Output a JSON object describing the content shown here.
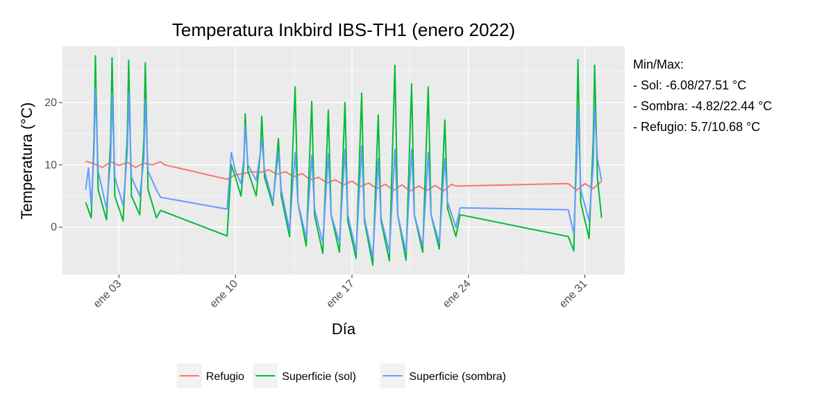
{
  "chart_data": {
    "type": "line",
    "title": "Temperatura Inkbird IBS-TH1 (enero 2022)",
    "xlabel": "Día",
    "ylabel": "Temperatura (°C)",
    "x_range": [
      "2022-01-01",
      "2022-02-01"
    ],
    "ylim": [
      -7.6,
      29.0
    ],
    "y_ticks": [
      0,
      10,
      20
    ],
    "x_ticks": [
      {
        "date": "2022-01-03",
        "label": "ene 03"
      },
      {
        "date": "2022-01-10",
        "label": "ene 10"
      },
      {
        "date": "2022-01-17",
        "label": "ene 17"
      },
      {
        "date": "2022-01-24",
        "label": "ene 24"
      },
      {
        "date": "2022-01-31",
        "label": "ene 31"
      }
    ],
    "grid": true,
    "legend_position": "bottom",
    "annotation": {
      "heading": "Min/Max:",
      "lines": [
        "- Sol: -6.08/27.51 °C",
        "- Sombra: -4.82/22.44 °C",
        "- Refugio: 5.7/10.68 °C"
      ]
    },
    "series": [
      {
        "name": "Refugio",
        "color": "#F8766D",
        "points": [
          [
            "2022-01-01 00:00",
            10.6
          ],
          [
            "2022-01-01 12:00",
            10.2
          ],
          [
            "2022-01-02 00:00",
            9.6
          ],
          [
            "2022-01-02 12:00",
            10.5
          ],
          [
            "2022-01-03 00:00",
            9.9
          ],
          [
            "2022-01-03 12:00",
            10.4
          ],
          [
            "2022-01-04 00:00",
            9.6
          ],
          [
            "2022-01-04 12:00",
            10.3
          ],
          [
            "2022-01-05 00:00",
            10.0
          ],
          [
            "2022-01-05 12:00",
            10.5
          ],
          [
            "2022-01-05 18:00",
            10.0
          ],
          [
            "2022-01-09 12:00",
            7.7
          ],
          [
            "2022-01-10 00:00",
            8.4
          ],
          [
            "2022-01-10 12:00",
            8.6
          ],
          [
            "2022-01-11 00:00",
            8.9
          ],
          [
            "2022-01-11 12:00",
            8.8
          ],
          [
            "2022-01-12 00:00",
            9.2
          ],
          [
            "2022-01-12 12:00",
            8.5
          ],
          [
            "2022-01-13 00:00",
            8.9
          ],
          [
            "2022-01-13 12:00",
            8.1
          ],
          [
            "2022-01-14 00:00",
            8.6
          ],
          [
            "2022-01-14 12:00",
            7.6
          ],
          [
            "2022-01-15 00:00",
            8.0
          ],
          [
            "2022-01-15 12:00",
            7.1
          ],
          [
            "2022-01-16 00:00",
            7.6
          ],
          [
            "2022-01-16 12:00",
            6.8
          ],
          [
            "2022-01-17 00:00",
            7.4
          ],
          [
            "2022-01-17 12:00",
            6.5
          ],
          [
            "2022-01-18 00:00",
            7.1
          ],
          [
            "2022-01-18 12:00",
            6.2
          ],
          [
            "2022-01-19 00:00",
            6.9
          ],
          [
            "2022-01-19 12:00",
            5.9
          ],
          [
            "2022-01-20 00:00",
            6.8
          ],
          [
            "2022-01-20 12:00",
            5.8
          ],
          [
            "2022-01-21 00:00",
            6.6
          ],
          [
            "2022-01-21 12:00",
            5.9
          ],
          [
            "2022-01-22 00:00",
            6.7
          ],
          [
            "2022-01-22 12:00",
            5.8
          ],
          [
            "2022-01-23 00:00",
            6.9
          ],
          [
            "2022-01-23 06:00",
            6.6
          ],
          [
            "2022-01-30 00:00",
            7.0
          ],
          [
            "2022-01-30 12:00",
            5.9
          ],
          [
            "2022-01-31 00:00",
            7.0
          ],
          [
            "2022-01-31 12:00",
            6.2
          ],
          [
            "2022-02-01 00:00",
            7.4
          ]
        ]
      },
      {
        "name": "Superficie (sol)",
        "color": "#00BA38",
        "points": [
          [
            "2022-01-01 00:00",
            4.0
          ],
          [
            "2022-01-01 08:00",
            1.5
          ],
          [
            "2022-01-01 12:00",
            14.0
          ],
          [
            "2022-01-01 14:00",
            27.5
          ],
          [
            "2022-01-01 18:00",
            6.0
          ],
          [
            "2022-01-02 06:00",
            1.2
          ],
          [
            "2022-01-02 12:00",
            14.0
          ],
          [
            "2022-01-02 14:00",
            27.2
          ],
          [
            "2022-01-02 18:00",
            5.0
          ],
          [
            "2022-01-03 06:00",
            1.0
          ],
          [
            "2022-01-03 12:00",
            15.0
          ],
          [
            "2022-01-03 14:00",
            26.8
          ],
          [
            "2022-01-03 18:00",
            5.0
          ],
          [
            "2022-01-04 06:00",
            2.0
          ],
          [
            "2022-01-04 12:00",
            14.0
          ],
          [
            "2022-01-04 14:00",
            26.4
          ],
          [
            "2022-01-04 18:00",
            6.0
          ],
          [
            "2022-01-05 06:00",
            1.5
          ],
          [
            "2022-01-05 12:00",
            2.7
          ],
          [
            "2022-01-09 12:00",
            -1.4
          ],
          [
            "2022-01-09 18:00",
            10.0
          ],
          [
            "2022-01-10 00:00",
            8.0
          ],
          [
            "2022-01-10 08:00",
            5.0
          ],
          [
            "2022-01-10 12:00",
            10.0
          ],
          [
            "2022-01-10 14:00",
            18.2
          ],
          [
            "2022-01-10 18:00",
            9.0
          ],
          [
            "2022-01-11 06:00",
            5.0
          ],
          [
            "2022-01-11 12:00",
            12.0
          ],
          [
            "2022-01-11 14:00",
            17.8
          ],
          [
            "2022-01-11 18:00",
            8.0
          ],
          [
            "2022-01-12 06:00",
            3.5
          ],
          [
            "2022-01-12 14:00",
            14.2
          ],
          [
            "2022-01-12 18:00",
            5.0
          ],
          [
            "2022-01-13 06:00",
            -1.5
          ],
          [
            "2022-01-13 14:00",
            22.5
          ],
          [
            "2022-01-13 18:00",
            4.0
          ],
          [
            "2022-01-14 06:00",
            -3.0
          ],
          [
            "2022-01-14 14:00",
            20.2
          ],
          [
            "2022-01-14 18:00",
            2.0
          ],
          [
            "2022-01-15 06:00",
            -4.2
          ],
          [
            "2022-01-15 14:00",
            18.8
          ],
          [
            "2022-01-15 18:00",
            2.0
          ],
          [
            "2022-01-16 06:00",
            -4.0
          ],
          [
            "2022-01-16 14:00",
            20.0
          ],
          [
            "2022-01-16 18:00",
            1.0
          ],
          [
            "2022-01-17 06:00",
            -5.0
          ],
          [
            "2022-01-17 14:00",
            21.5
          ],
          [
            "2022-01-17 18:00",
            1.0
          ],
          [
            "2022-01-18 06:00",
            -6.08
          ],
          [
            "2022-01-18 14:00",
            18.0
          ],
          [
            "2022-01-18 18:00",
            1.0
          ],
          [
            "2022-01-19 06:00",
            -5.4
          ],
          [
            "2022-01-19 14:00",
            26.0
          ],
          [
            "2022-01-19 18:00",
            2.0
          ],
          [
            "2022-01-20 06:00",
            -5.3
          ],
          [
            "2022-01-20 14:00",
            23.0
          ],
          [
            "2022-01-20 18:00",
            2.0
          ],
          [
            "2022-01-21 06:00",
            -4.0
          ],
          [
            "2022-01-21 14:00",
            22.5
          ],
          [
            "2022-01-21 18:00",
            2.0
          ],
          [
            "2022-01-22 06:00",
            -3.5
          ],
          [
            "2022-01-22 14:00",
            17.2
          ],
          [
            "2022-01-22 18:00",
            3.0
          ],
          [
            "2022-01-23 06:00",
            -1.5
          ],
          [
            "2022-01-23 12:00",
            2.0
          ],
          [
            "2022-01-30 00:00",
            -1.5
          ],
          [
            "2022-01-30 08:00",
            -3.8
          ],
          [
            "2022-01-30 12:00",
            14.0
          ],
          [
            "2022-01-30 14:00",
            26.9
          ],
          [
            "2022-01-30 18:00",
            4.0
          ],
          [
            "2022-01-31 06:00",
            -1.8
          ],
          [
            "2022-01-31 12:00",
            14.0
          ],
          [
            "2022-01-31 14:00",
            26.0
          ],
          [
            "2022-01-31 18:00",
            8.0
          ],
          [
            "2022-02-01 00:00",
            1.5
          ]
        ]
      },
      {
        "name": "Superficie (sombra)",
        "color": "#619CFF",
        "points": [
          [
            "2022-01-01 00:00",
            6.0
          ],
          [
            "2022-01-01 04:00",
            9.5
          ],
          [
            "2022-01-01 08:00",
            3.5
          ],
          [
            "2022-01-01 12:00",
            12.0
          ],
          [
            "2022-01-01 14:00",
            22.4
          ],
          [
            "2022-01-01 18:00",
            9.0
          ],
          [
            "2022-01-02 06:00",
            3.0
          ],
          [
            "2022-01-02 12:00",
            11.0
          ],
          [
            "2022-01-02 14:00",
            21.5
          ],
          [
            "2022-01-02 18:00",
            8.0
          ],
          [
            "2022-01-03 06:00",
            3.5
          ],
          [
            "2022-01-03 12:00",
            12.0
          ],
          [
            "2022-01-03 14:00",
            21.5
          ],
          [
            "2022-01-03 18:00",
            8.0
          ],
          [
            "2022-01-04 06:00",
            5.0
          ],
          [
            "2022-01-04 12:00",
            11.0
          ],
          [
            "2022-01-04 14:00",
            20.5
          ],
          [
            "2022-01-04 18:00",
            9.0
          ],
          [
            "2022-01-05 06:00",
            6.0
          ],
          [
            "2022-01-05 12:00",
            4.8
          ],
          [
            "2022-01-09 12:00",
            2.9
          ],
          [
            "2022-01-09 18:00",
            12.0
          ],
          [
            "2022-01-10 00:00",
            9.0
          ],
          [
            "2022-01-10 08:00",
            7.0
          ],
          [
            "2022-01-10 12:00",
            11.0
          ],
          [
            "2022-01-10 14:00",
            16.3
          ],
          [
            "2022-01-10 18:00",
            10.0
          ],
          [
            "2022-01-11 06:00",
            7.5
          ],
          [
            "2022-01-11 12:00",
            12.0
          ],
          [
            "2022-01-11 14:00",
            14.0
          ],
          [
            "2022-01-11 18:00",
            9.0
          ],
          [
            "2022-01-12 06:00",
            4.0
          ],
          [
            "2022-01-12 14:00",
            12.0
          ],
          [
            "2022-01-12 18:00",
            6.0
          ],
          [
            "2022-01-13 06:00",
            -0.5
          ],
          [
            "2022-01-13 14:00",
            12.0
          ],
          [
            "2022-01-13 18:00",
            4.0
          ],
          [
            "2022-01-14 06:00",
            -1.8
          ],
          [
            "2022-01-14 14:00",
            11.5
          ],
          [
            "2022-01-14 18:00",
            3.0
          ],
          [
            "2022-01-15 06:00",
            -2.5
          ],
          [
            "2022-01-15 14:00",
            11.8
          ],
          [
            "2022-01-15 18:00",
            2.0
          ],
          [
            "2022-01-16 06:00",
            -2.5
          ],
          [
            "2022-01-16 14:00",
            12.5
          ],
          [
            "2022-01-16 18:00",
            2.0
          ],
          [
            "2022-01-17 06:00",
            -4.0
          ],
          [
            "2022-01-17 14:00",
            13.0
          ],
          [
            "2022-01-17 18:00",
            1.5
          ],
          [
            "2022-01-18 06:00",
            -4.82
          ],
          [
            "2022-01-18 14:00",
            11.0
          ],
          [
            "2022-01-18 18:00",
            1.5
          ],
          [
            "2022-01-19 06:00",
            -4.0
          ],
          [
            "2022-01-19 14:00",
            12.5
          ],
          [
            "2022-01-19 18:00",
            2.0
          ],
          [
            "2022-01-20 06:00",
            -4.0
          ],
          [
            "2022-01-20 14:00",
            12.5
          ],
          [
            "2022-01-20 18:00",
            2.0
          ],
          [
            "2022-01-21 06:00",
            -3.0
          ],
          [
            "2022-01-21 14:00",
            12.0
          ],
          [
            "2022-01-21 18:00",
            2.0
          ],
          [
            "2022-01-22 06:00",
            -2.5
          ],
          [
            "2022-01-22 14:00",
            11.0
          ],
          [
            "2022-01-22 18:00",
            4.0
          ],
          [
            "2022-01-23 06:00",
            0.0
          ],
          [
            "2022-01-23 12:00",
            3.1
          ],
          [
            "2022-01-30 00:00",
            2.8
          ],
          [
            "2022-01-30 08:00",
            -1.0
          ],
          [
            "2022-01-30 12:00",
            10.0
          ],
          [
            "2022-01-30 14:00",
            19.0
          ],
          [
            "2022-01-30 18:00",
            6.0
          ],
          [
            "2022-01-31 06:00",
            1.0
          ],
          [
            "2022-01-31 12:00",
            10.0
          ],
          [
            "2022-01-31 14:00",
            19.2
          ],
          [
            "2022-01-31 18:00",
            11.0
          ],
          [
            "2022-02-01 00:00",
            7.5
          ]
        ]
      }
    ]
  }
}
